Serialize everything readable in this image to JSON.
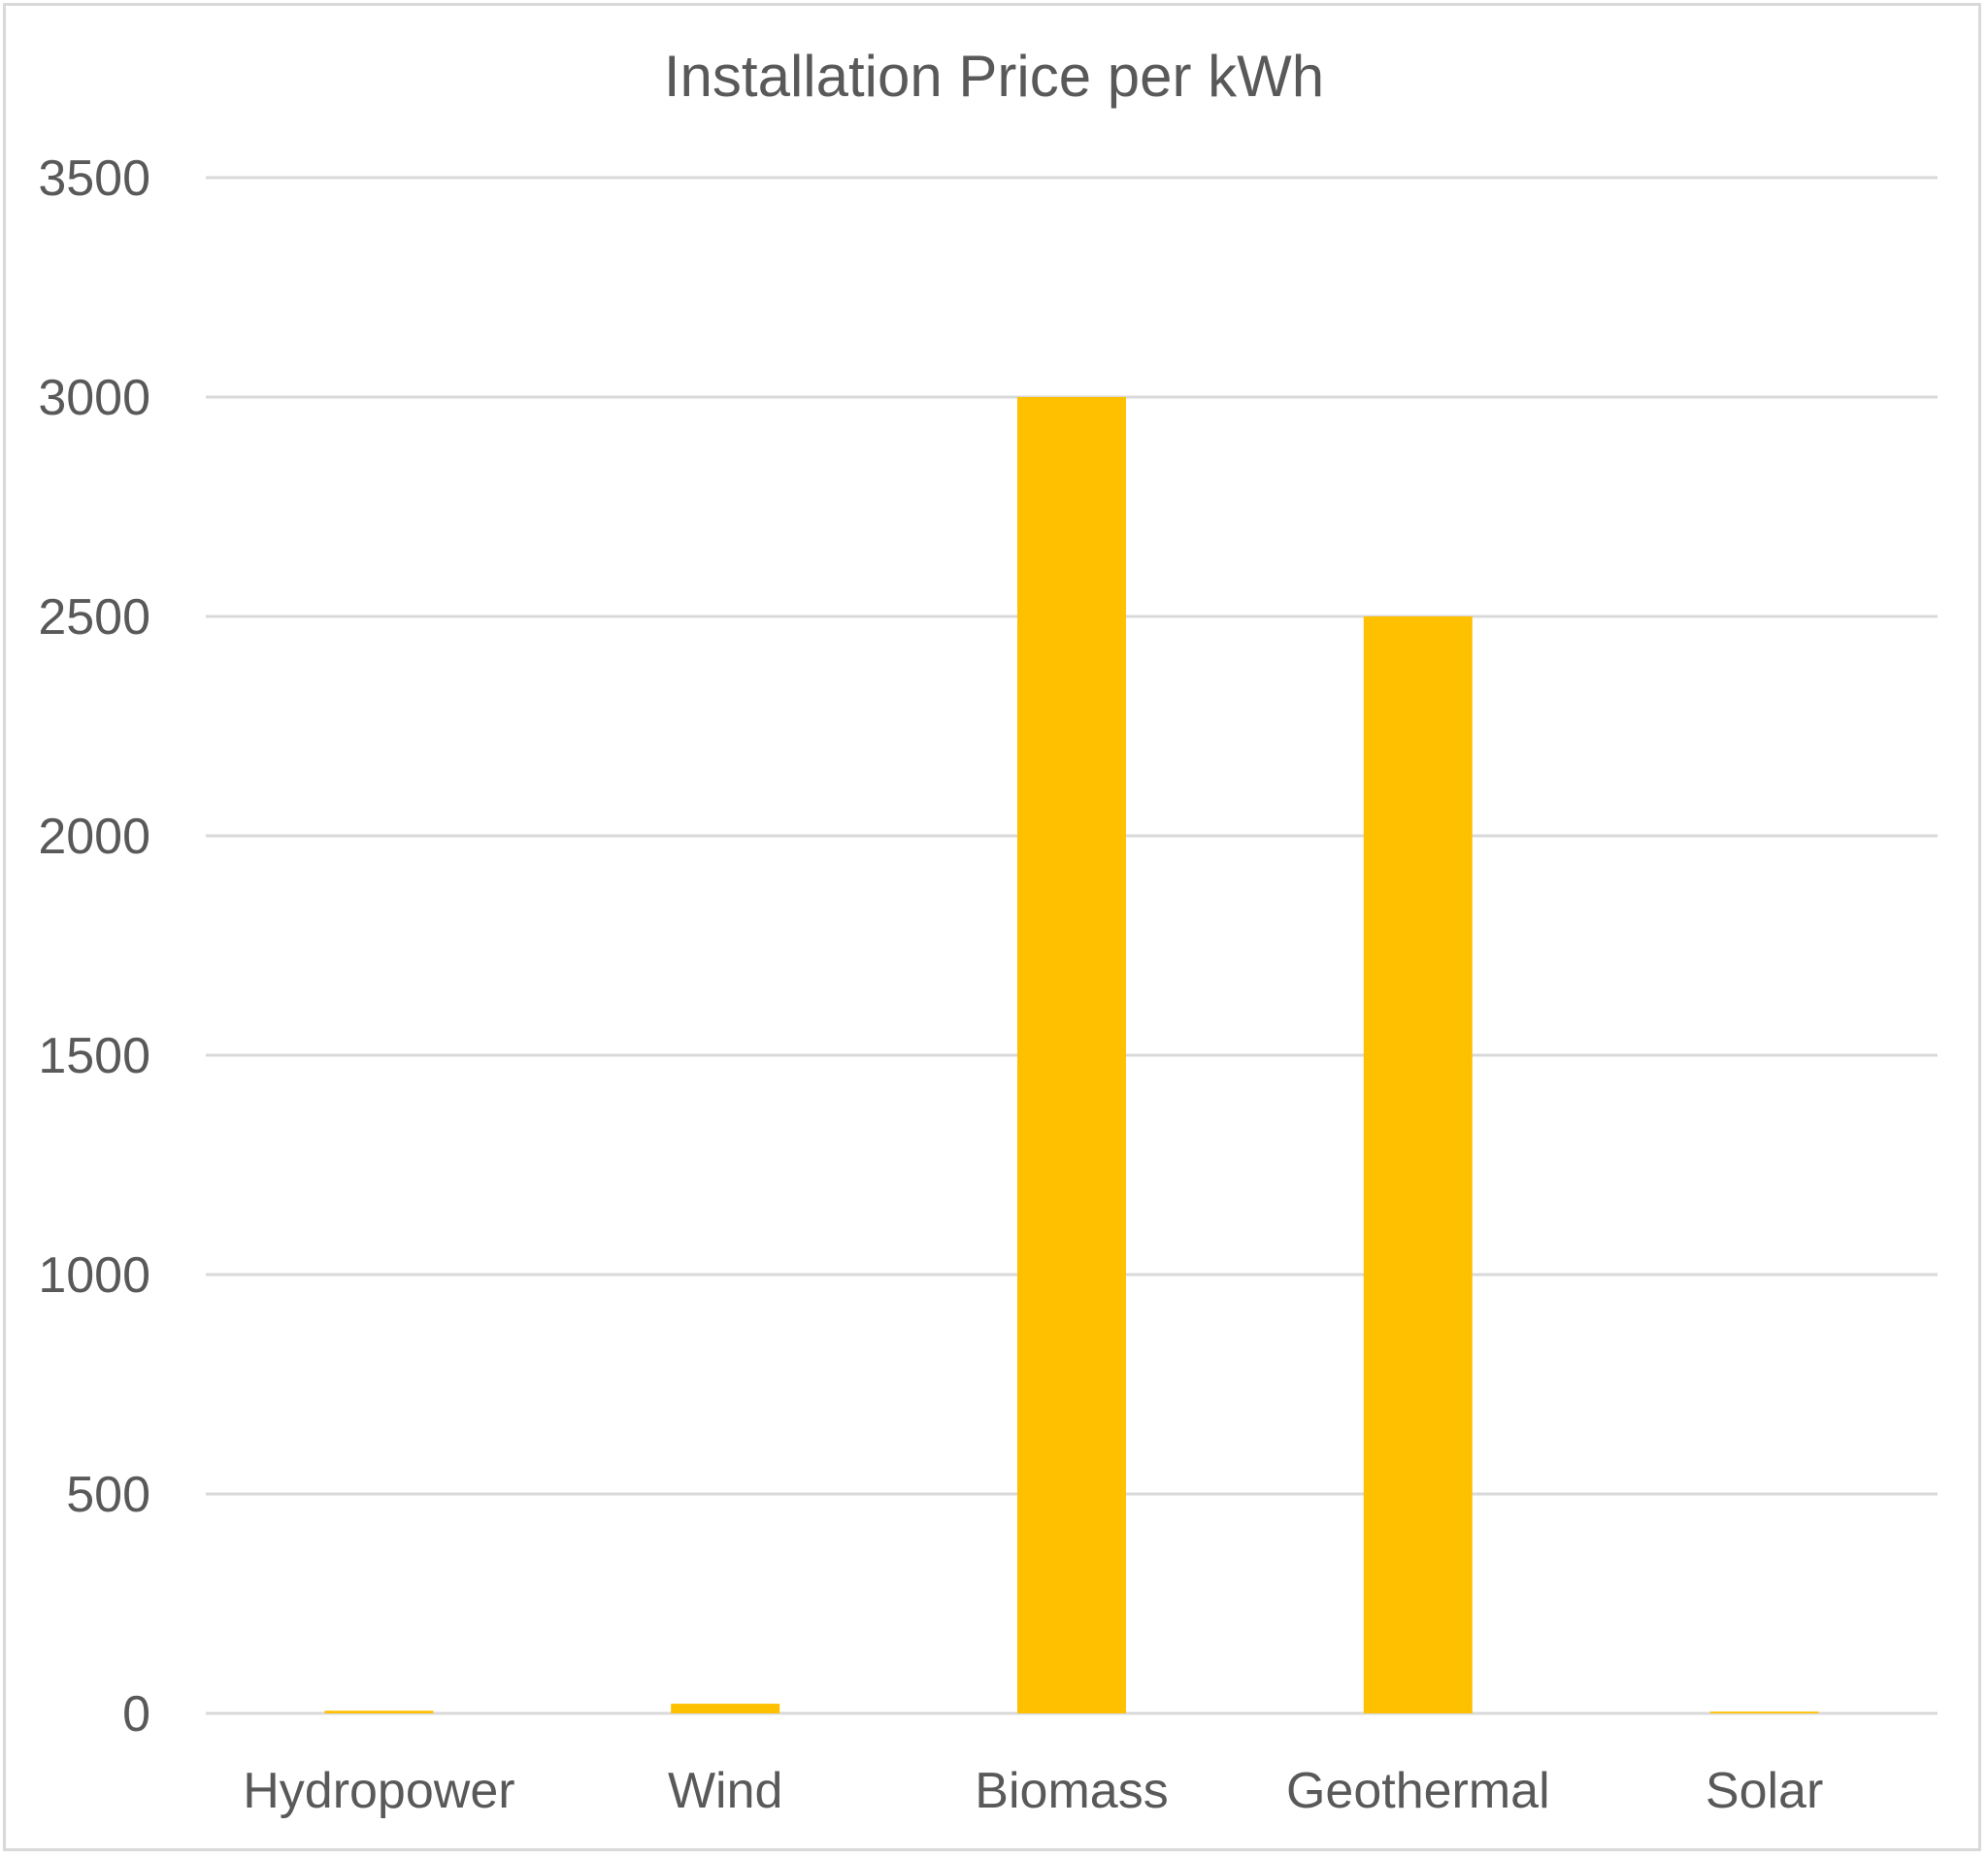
{
  "chart_data": {
    "type": "bar",
    "title": "Installation Price per kWh",
    "categories": [
      "Hydropower",
      "Wind",
      "Biomass",
      "Geothermal",
      "Solar"
    ],
    "values": [
      6,
      22,
      3000,
      2500,
      4
    ],
    "ylim": [
      0,
      3500
    ],
    "yticks": [
      "0",
      "500",
      "1000",
      "1500",
      "2000",
      "2500",
      "3000",
      "3500"
    ],
    "ytick_values": [
      0,
      500,
      1000,
      1500,
      2000,
      2500,
      3000,
      3500
    ],
    "grid": true,
    "legend": "none",
    "bar_color": "#ffc000",
    "text_color": "#595959",
    "grid_color": "#d9d9d9"
  }
}
